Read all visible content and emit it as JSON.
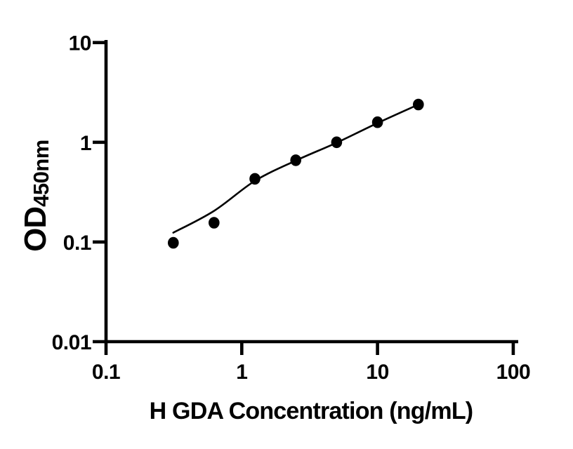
{
  "figure": {
    "background_color": "#ffffff",
    "ink_color": "#000000"
  },
  "chart_data": {
    "type": "scatter",
    "title": "",
    "xlabel": "H GDA Concentration (ng/mL)",
    "ylabel_main": "OD",
    "ylabel_sub": "450nm",
    "x_scale": "log",
    "y_scale": "log",
    "xlim": [
      0.1,
      100
    ],
    "ylim": [
      0.01,
      10
    ],
    "x_ticks": [
      0.1,
      1,
      10,
      100
    ],
    "x_tick_labels": [
      "0.1",
      "1",
      "10",
      "100"
    ],
    "y_ticks": [
      0.01,
      0.1,
      1,
      10
    ],
    "y_tick_labels": [
      "0.01",
      "0.1",
      "1",
      "10"
    ],
    "grid": false,
    "legend_position": "none",
    "series": [
      {
        "name": "standard-points",
        "type": "scatter",
        "marker": "filled-circle",
        "color": "#000000",
        "x": [
          0.313,
          0.625,
          1.25,
          2.5,
          5,
          10,
          20
        ],
        "y": [
          0.098,
          0.156,
          0.43,
          0.66,
          1.0,
          1.59,
          2.39
        ]
      },
      {
        "name": "fit-curve",
        "type": "line",
        "color": "#000000",
        "x": [
          0.313,
          0.625,
          1.25,
          2.5,
          5,
          10,
          20
        ],
        "y": [
          0.124,
          0.205,
          0.41,
          0.655,
          0.99,
          1.56,
          2.39
        ]
      }
    ]
  }
}
